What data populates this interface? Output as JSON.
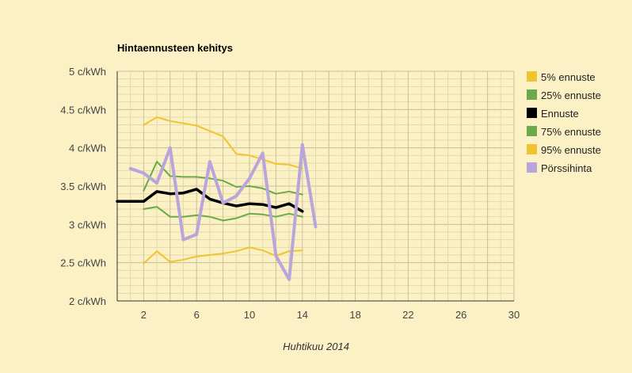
{
  "chart_data": {
    "type": "line",
    "title": "Hintaennusteen kehitys",
    "xlabel": "Huhtikuu 2014",
    "ylabel": "",
    "xlim": [
      0,
      30
    ],
    "ylim": [
      2,
      5
    ],
    "x_ticks": [
      2,
      6,
      10,
      14,
      18,
      22,
      26,
      30
    ],
    "x_tick_labels": [
      "2",
      "6",
      "10",
      "14",
      "18",
      "22",
      "26",
      "30"
    ],
    "y_ticks": [
      2,
      2.5,
      3,
      3.5,
      4,
      4.5,
      5
    ],
    "y_tick_labels": [
      "2 c/kWh",
      "2.5 c/kWh",
      "3 c/kWh",
      "3.5 c/kWh",
      "4 c/kWh",
      "4.5 c/kWh",
      "5 c/kWh"
    ],
    "grid": true,
    "legend_position": "right",
    "series": [
      {
        "name": "5% ennuste",
        "color": "#f0c330",
        "x": [
          2,
          3,
          4,
          5,
          6,
          7,
          8,
          9,
          10,
          11,
          12,
          13,
          14
        ],
        "values": [
          2.49,
          2.65,
          2.51,
          2.54,
          2.58,
          2.6,
          2.62,
          2.65,
          2.7,
          2.66,
          2.59,
          2.65,
          2.66
        ]
      },
      {
        "name": "25% ennuste",
        "color": "#6aaa4b",
        "x": [
          2,
          3,
          4,
          5,
          6,
          7,
          8,
          9,
          10,
          11,
          12,
          13,
          14
        ],
        "values": [
          3.2,
          3.23,
          3.1,
          3.1,
          3.12,
          3.1,
          3.05,
          3.08,
          3.14,
          3.13,
          3.1,
          3.14,
          3.1
        ]
      },
      {
        "name": "Ennuste",
        "color": "#000000",
        "x": [
          0,
          1,
          2,
          3,
          4,
          5,
          6,
          7,
          8,
          9,
          10,
          11,
          12,
          13,
          14
        ],
        "values": [
          3.3,
          3.3,
          3.3,
          3.43,
          3.4,
          3.41,
          3.46,
          3.33,
          3.28,
          3.24,
          3.27,
          3.26,
          3.22,
          3.27,
          3.17
        ]
      },
      {
        "name": "75% ennuste",
        "color": "#6aaa4b",
        "x": [
          2,
          3,
          4,
          5,
          6,
          7,
          8,
          9,
          10,
          11,
          12,
          13,
          14
        ],
        "values": [
          3.44,
          3.82,
          3.63,
          3.62,
          3.62,
          3.6,
          3.57,
          3.49,
          3.5,
          3.47,
          3.4,
          3.43,
          3.39
        ]
      },
      {
        "name": "95% ennuste",
        "color": "#f0c330",
        "x": [
          2,
          3,
          4,
          5,
          6,
          7,
          8,
          9,
          10,
          11,
          12,
          13,
          14
        ],
        "values": [
          4.3,
          4.4,
          4.35,
          4.32,
          4.29,
          4.22,
          4.15,
          3.92,
          3.9,
          3.85,
          3.79,
          3.78,
          3.73
        ]
      },
      {
        "name": "Pörssihinta",
        "color": "#b8a5dc",
        "x": [
          1,
          2,
          3,
          4,
          5,
          6,
          7,
          8,
          9,
          10,
          11,
          12,
          13,
          14,
          15
        ],
        "values": [
          3.73,
          3.67,
          3.54,
          4.0,
          2.8,
          2.87,
          3.82,
          3.28,
          3.37,
          3.6,
          3.93,
          2.59,
          2.28,
          4.04,
          2.97
        ]
      }
    ]
  }
}
